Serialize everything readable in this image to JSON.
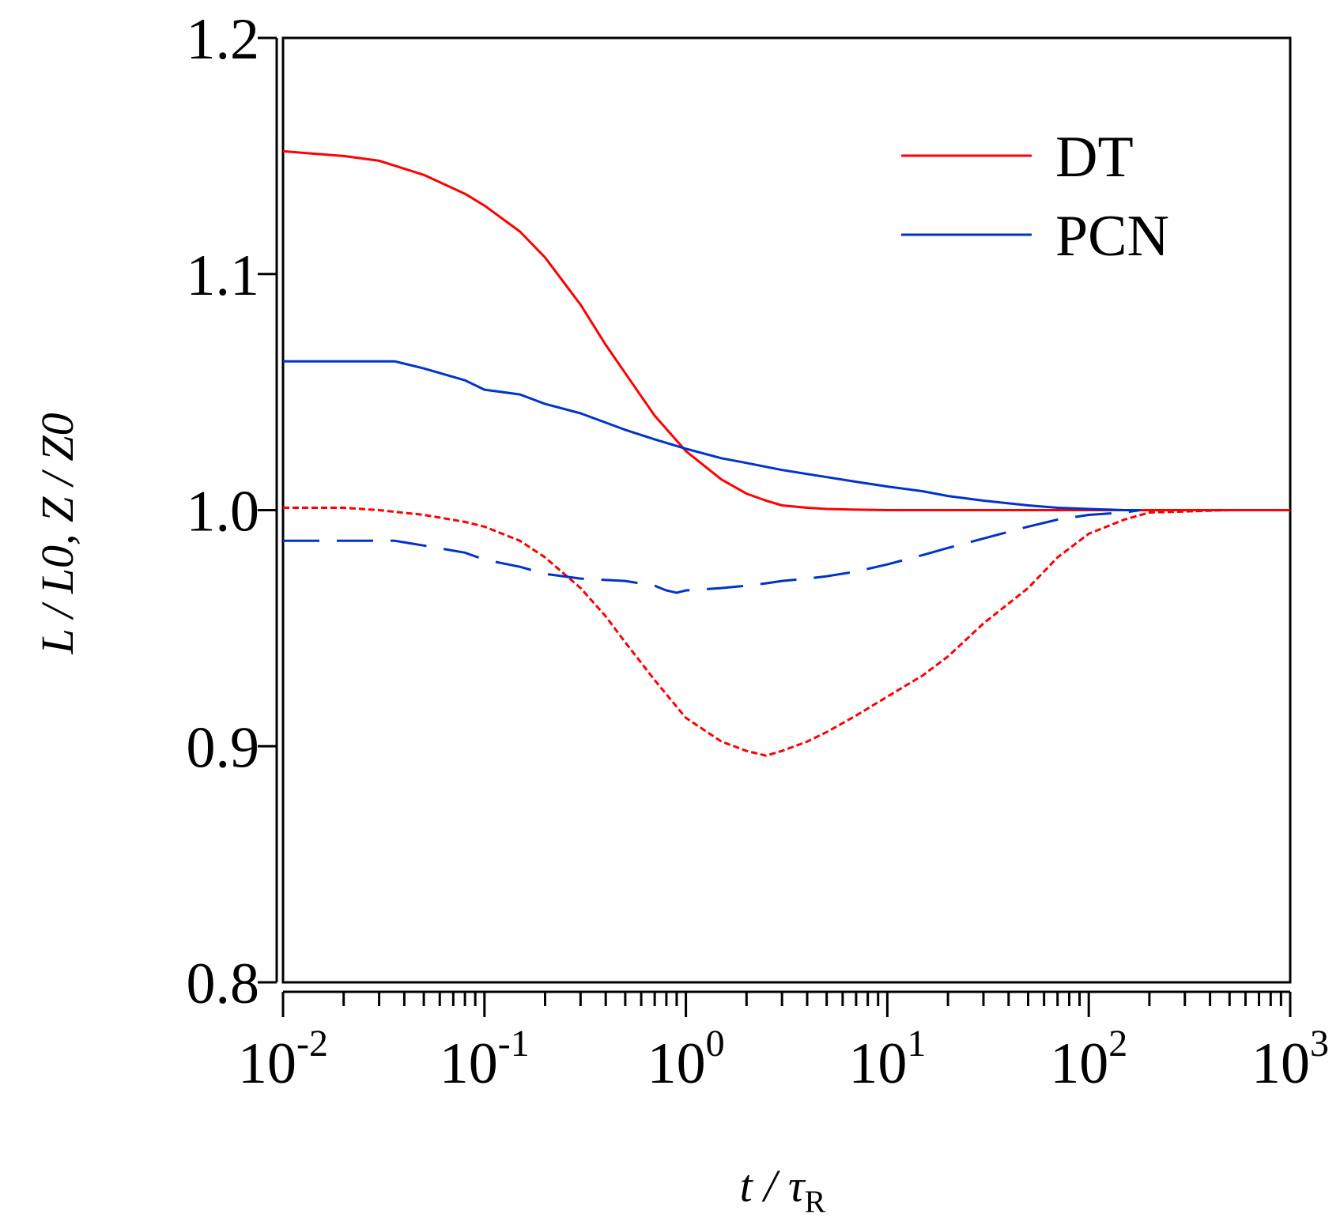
{
  "chart_data": {
    "type": "line",
    "title": "",
    "xlabel": {
      "main": "t / τ",
      "subscript": "R"
    },
    "ylabel": {
      "text": "L / L0, Z / Z0"
    },
    "xscale": "log",
    "xlim": [
      0.01,
      1000
    ],
    "ylim": [
      0.8,
      1.2
    ],
    "grid": false,
    "legend_position": "top-right",
    "x_ticks": [
      {
        "base": "10",
        "exp": "-2",
        "value": 0.01
      },
      {
        "base": "10",
        "exp": "-1",
        "value": 0.1
      },
      {
        "base": "10",
        "exp": "0",
        "value": 1
      },
      {
        "base": "10",
        "exp": "1",
        "value": 10
      },
      {
        "base": "10",
        "exp": "2",
        "value": 100
      },
      {
        "base": "10",
        "exp": "3",
        "value": 1000
      }
    ],
    "y_ticks": [
      {
        "label": "0.8",
        "value": 0.8
      },
      {
        "label": "0.9",
        "value": 0.9
      },
      {
        "label": "1.0",
        "value": 1.0
      },
      {
        "label": "1.1",
        "value": 1.1
      },
      {
        "label": "1.2",
        "value": 1.2
      }
    ],
    "legend": [
      {
        "label": "DT",
        "color": "#ff0000"
      },
      {
        "label": "PCN",
        "color": "#0033cc"
      }
    ],
    "series": [
      {
        "name": "DT L/L0",
        "group": "DT",
        "color": "#ff0000",
        "style": "solid",
        "x": [
          0.01,
          0.02,
          0.03,
          0.05,
          0.08,
          0.1,
          0.15,
          0.2,
          0.3,
          0.4,
          0.5,
          0.7,
          1.0,
          1.5,
          2.0,
          2.5,
          3.0,
          4.0,
          5.0,
          7.0,
          10,
          20,
          50,
          100,
          200,
          500,
          1000
        ],
        "values": [
          1.152,
          1.15,
          1.148,
          1.142,
          1.134,
          1.129,
          1.118,
          1.107,
          1.087,
          1.07,
          1.058,
          1.04,
          1.025,
          1.013,
          1.007,
          1.004,
          1.002,
          1.001,
          1.0005,
          1.0002,
          1.0,
          1.0,
          1.0,
          1.0,
          1.0,
          1.0,
          1.0
        ]
      },
      {
        "name": "DT Z/Z0",
        "group": "DT",
        "color": "#ff0000",
        "style": "dotted",
        "x": [
          0.01,
          0.02,
          0.03,
          0.05,
          0.08,
          0.1,
          0.15,
          0.2,
          0.3,
          0.4,
          0.5,
          0.7,
          1.0,
          1.5,
          2.0,
          2.5,
          3.0,
          4.0,
          5.0,
          7.0,
          10,
          15,
          20,
          30,
          50,
          70,
          100,
          150,
          200,
          500,
          1000
        ],
        "values": [
          1.001,
          1.001,
          1.0,
          0.998,
          0.995,
          0.993,
          0.987,
          0.98,
          0.967,
          0.955,
          0.944,
          0.928,
          0.912,
          0.902,
          0.898,
          0.896,
          0.898,
          0.902,
          0.906,
          0.913,
          0.921,
          0.93,
          0.938,
          0.952,
          0.967,
          0.98,
          0.99,
          0.996,
          0.999,
          1.0,
          1.0
        ]
      },
      {
        "name": "PCN L/L0",
        "group": "PCN",
        "color": "#0033cc",
        "style": "solid",
        "x": [
          0.01,
          0.02,
          0.036,
          0.05,
          0.08,
          0.1,
          0.15,
          0.2,
          0.3,
          0.5,
          0.7,
          1.0,
          1.5,
          2.0,
          3.0,
          5.0,
          7.0,
          10,
          15,
          20,
          30,
          50,
          70,
          100,
          150,
          180
        ],
        "values": [
          1.063,
          1.063,
          1.063,
          1.06,
          1.055,
          1.051,
          1.049,
          1.045,
          1.041,
          1.034,
          1.03,
          1.026,
          1.022,
          1.02,
          1.017,
          1.014,
          1.012,
          1.01,
          1.008,
          1.006,
          1.004,
          1.002,
          1.001,
          1.0005,
          1.0,
          1.0
        ]
      },
      {
        "name": "PCN Z/Z0",
        "group": "PCN",
        "color": "#0033cc",
        "style": "dashed",
        "x": [
          0.01,
          0.02,
          0.036,
          0.05,
          0.08,
          0.1,
          0.15,
          0.2,
          0.3,
          0.5,
          0.7,
          0.8,
          0.9,
          1.0,
          1.5,
          2.0,
          2.5,
          3.0,
          4.0,
          5.0,
          7.0,
          10,
          15,
          20,
          30,
          50,
          70,
          100,
          150,
          180
        ],
        "values": [
          0.987,
          0.987,
          0.987,
          0.985,
          0.982,
          0.979,
          0.976,
          0.973,
          0.971,
          0.97,
          0.968,
          0.966,
          0.965,
          0.966,
          0.967,
          0.968,
          0.969,
          0.97,
          0.971,
          0.972,
          0.974,
          0.977,
          0.981,
          0.984,
          0.988,
          0.993,
          0.996,
          0.998,
          0.999,
          1.0
        ]
      }
    ]
  }
}
